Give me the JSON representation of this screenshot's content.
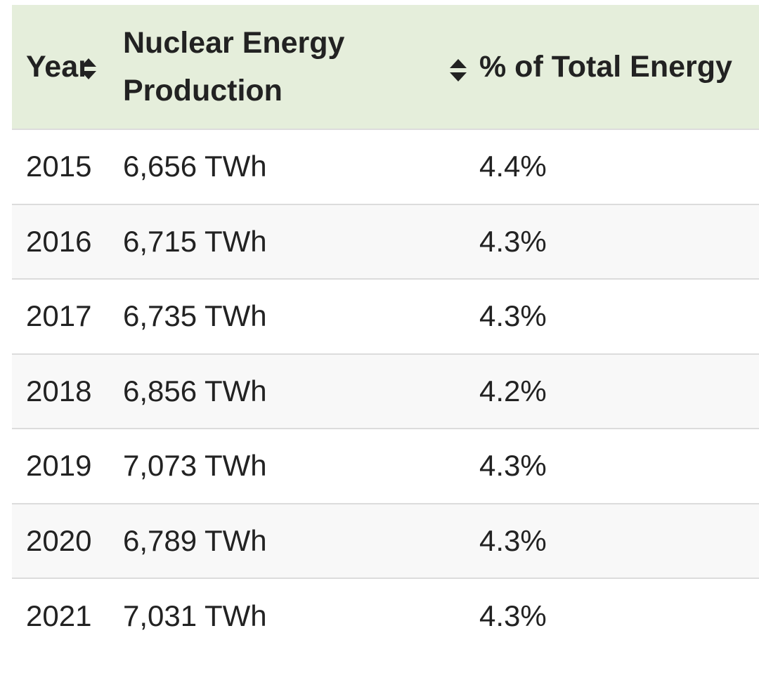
{
  "table": {
    "headers": {
      "year": "Year",
      "production_line1": "Nuclear Energy",
      "production_line2": "Production",
      "percent": "% of Total Energy"
    },
    "rows": [
      {
        "year": "2015",
        "production": "6,656 TWh",
        "percent": "4.4%"
      },
      {
        "year": "2016",
        "production": "6,715 TWh",
        "percent": "4.3%"
      },
      {
        "year": "2017",
        "production": "6,735 TWh",
        "percent": "4.3%"
      },
      {
        "year": "2018",
        "production": "6,856 TWh",
        "percent": "4.2%"
      },
      {
        "year": "2019",
        "production": "7,073 TWh",
        "percent": "4.3%"
      },
      {
        "year": "2020",
        "production": "6,789 TWh",
        "percent": "4.3%"
      },
      {
        "year": "2021",
        "production": "7,031 TWh",
        "percent": "4.3%"
      }
    ]
  },
  "icons": {
    "year_sort": "sort-updown-icon",
    "production_sort": "sort-updown-icon"
  },
  "colors": {
    "header_background": "#e5eedb",
    "row_shaded_background": "#f8f8f8",
    "row_border": "#dcdcdc",
    "text": "#222222"
  }
}
